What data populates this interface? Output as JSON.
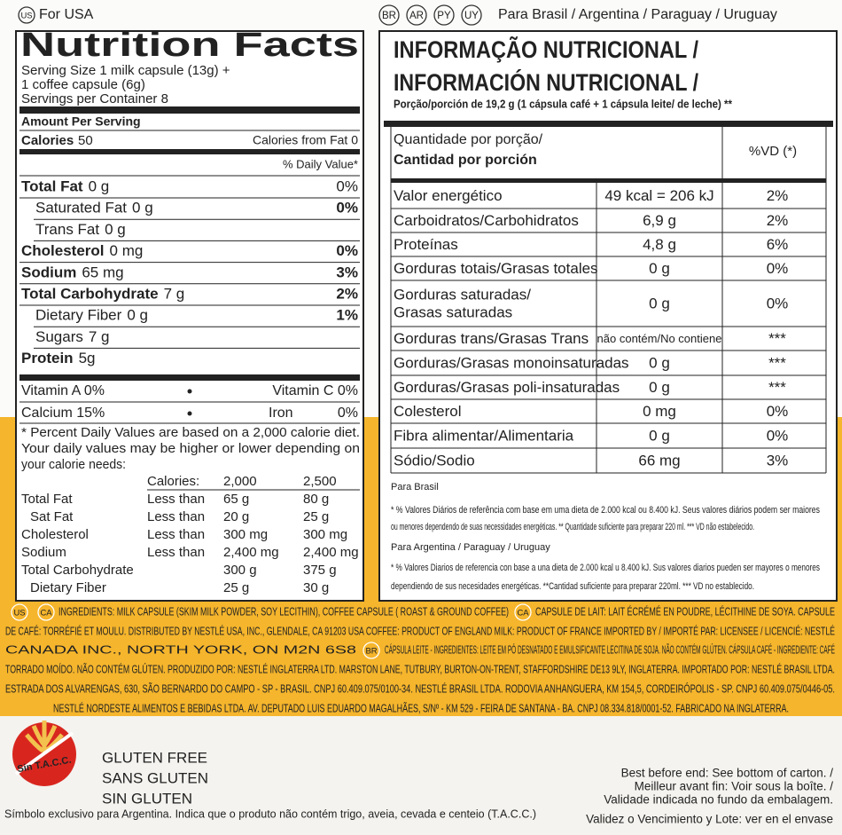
{
  "header": {
    "us_badge": "US",
    "us_label": "For USA",
    "br_badges": [
      "BR",
      "AR",
      "PY",
      "UY"
    ],
    "br_label": "Para Brasil / Argentina / Paraguay / Uruguay"
  },
  "us_panel": {
    "title": "Nutrition Facts",
    "serving_lines": [
      "Serving Size 1 milk capsule (13g) +",
      "1 coffee capsule (6g)",
      "Servings per Container 8"
    ],
    "amount_per_serving": "Amount Per Serving",
    "calories": {
      "label": "Calories",
      "value": "50",
      "from_fat": "Calories from Fat 0"
    },
    "daily_value_header": "% Daily Value*",
    "rows": [
      {
        "name": "Total Fat",
        "amount": "0 g",
        "dv": "0%"
      },
      {
        "name": "Saturated Fat",
        "amount": "0 g",
        "dv": "0%"
      },
      {
        "name": "Trans Fat",
        "amount": "0 g"
      },
      {
        "name": "Cholesterol",
        "amount": "0 mg",
        "dv": "0%"
      },
      {
        "name": "Sodium",
        "amount": "65 mg",
        "dv": "3%"
      },
      {
        "name": "Total Carbohydrate",
        "amount": "7 g",
        "dv": "2%"
      },
      {
        "name": "Dietary Fiber",
        "amount": "0 g",
        "dv": "1%"
      },
      {
        "name": "Sugars",
        "amount": "7 g"
      },
      {
        "name": "Protein",
        "amount": "5g"
      }
    ],
    "vitamins": [
      [
        "Vitamin A 0%",
        "Vitamin C 0%"
      ],
      [
        "Calcium 15%",
        "Iron",
        "0%"
      ]
    ],
    "footnote_lines": [
      "* Percent Daily Values are based on a 2,000 calorie diet.",
      "Your daily values may be higher or lower depending on",
      "your calorie needs:"
    ],
    "reference_header": [
      "Calories:",
      "2,000",
      "2,500"
    ],
    "reference_rows": [
      [
        "Total Fat",
        "Less than",
        "65 g",
        "80 g"
      ],
      [
        "Sat Fat",
        "Less than",
        "20 g",
        "25 g"
      ],
      [
        "Cholesterol",
        "Less than",
        "300 mg",
        "300 mg"
      ],
      [
        "Sodium",
        "Less than",
        "2,400 mg",
        "2,400 mg"
      ],
      [
        "Total Carbohydrate",
        "",
        "300 g",
        "375 g"
      ],
      [
        "Dietary Fiber",
        "",
        "25 g",
        "30 g"
      ]
    ]
  },
  "br_panel": {
    "title_lines": [
      "INFORMAÇÃO NUTRICIONAL /",
      "INFORMACIÓN NUTRICIONAL /"
    ],
    "portion": "Porção/porción de 19,2 g (1 cápsula café + 1 cápsula leite/ de leche) **",
    "table_header": {
      "quantity": [
        "Quantidade por porção/",
        "Cantidad por porción"
      ],
      "dv": "%VD (*)"
    },
    "rows": [
      {
        "name": [
          "Valor energético"
        ],
        "amount": "49 kcal = 206 kJ",
        "dv": "2%"
      },
      {
        "name": [
          "Carboidratos/Carbohidratos"
        ],
        "amount": "6,9 g",
        "dv": "2%"
      },
      {
        "name": [
          "Proteínas"
        ],
        "amount": "4,8 g",
        "dv": "6%"
      },
      {
        "name": [
          "Gorduras totais/Grasas totales"
        ],
        "amount": "0 g",
        "dv": "0%"
      },
      {
        "name": [
          "Gorduras saturadas/",
          "Grasas saturadas"
        ],
        "amount": "0 g",
        "dv": "0%"
      },
      {
        "name": [
          "Gorduras trans/Grasas Trans"
        ],
        "amount": "não contém/No contiene",
        "dv": "***"
      },
      {
        "name": [
          "Gorduras/Grasas monoinsaturadas"
        ],
        "amount": "0 g",
        "dv": "***"
      },
      {
        "name": [
          "Gorduras/Grasas poli-insaturadas"
        ],
        "amount": "0 g",
        "dv": "***"
      },
      {
        "name": [
          "Colesterol"
        ],
        "amount": "0 mg",
        "dv": "0%"
      },
      {
        "name": [
          "Fibra alimentar/Alimentaria"
        ],
        "amount": "0 g",
        "dv": "0%"
      },
      {
        "name": [
          "Sódio/Sodio"
        ],
        "amount": "66 mg",
        "dv": "3%"
      }
    ],
    "footnote_lines": [
      "Para Brasil",
      "* % Valores Diários de referência com base em uma dieta de 2.000 kcal ou 8.400 kJ. Seus valores diários podem ser maiores",
      "ou menores dependendo de suas necessidades energéticas. ** Quantidade suficiente para preparar 220 ml. *** VD não estabelecido.",
      "Para Argentina / Paraguay / Uruguay",
      "* % Valores Diarios de referencia con base a una dieta de 2.000 kcal u 8.400 kJ. Sus valores diarios pueden ser mayores o menores",
      "dependiendo de sus necesidades energéticas. **Cantidad suficiente para preparar 220ml. *** VD no establecido."
    ]
  },
  "ingredients": [
    [
      "US",
      "CA",
      "INGREDIENTS: MILK CAPSULE (SKIM MILK POWDER, SOY LECITHIN), COFFEE CAPSULE ( ROAST & GROUND COFFEE)",
      "CA",
      "CAPSULE DE LAIT: LAIT ÉCRÉMÉ EN POUDRE, LÉCITHINE DE SOYA. CAPSULE"
    ],
    [
      "DE CAFÉ: TORRÉFIÉ ET MOULU. DISTRIBUTED BY NESTLÉ USA, INC., GLENDALE, CA 91203 USA COFFEE: PRODUCT OF ENGLAND MILK: PRODUCT OF FRANCE IMPORTED BY / IMPORTÉ PAR: LICENSEE / LICENCIÉ: NESTLÉ"
    ],
    [
      "CANADA INC., NORTH YORK, ON M2N 6S8",
      "BR",
      "CÁPSULA LEITE - INGREDIENTES: LEITE EM PÓ DESNATADO E EMULSIFICANTE LECITINA DE SOJA. NÃO CONTÉM GLÚTEN. CÁPSULA CAFÉ - INGREDIENTE: CAFÉ"
    ],
    [
      "TORRADO MOÍDO. NÃO CONTÉM GLÚTEN. PRODUZIDO POR: NESTLÉ INGLATERRA LTD. MARSTON LANE, TUTBURY, BURTON-ON-TRENT, STAFFORDSHIRE DE13 9LY, INGLATERRA. IMPORTADO POR: NESTLÉ BRASIL LTDA."
    ],
    [
      "ESTRADA DOS ALVARENGAS, 630, SÃO BERNARDO DO CAMPO - SP - BRASIL. CNPJ 60.409.075/0100-34. NESTLÉ BRASIL LTDA. RODOVIA ANHANGUERA, KM 154,5, CORDEIRÓPOLIS - SP. CNPJ 60.409.075/0446-05."
    ],
    [
      "NESTLÉ NORDESTE ALIMENTOS E BEBIDAS LTDA. AV. DEPUTADO LUIS EDUARDO MAGALHÃES, S/Nº - KM 529 - FEIRA DE SANTANA - BA. CNPJ 08.334.818/0001-52. FABRICADO NA INGLATERRA."
    ]
  ],
  "footer": {
    "logo_text": "Sin T.A.C.C.",
    "gluten_lines": [
      "GLUTEN FREE",
      "SANS GLUTEN",
      "SIN GLUTEN"
    ],
    "symbol_note": "Símbolo exclusivo para Argentina. Indica que o produto não contém trigo, aveia, cevada e centeio (T.A.C.C.)",
    "best_before_lines": [
      "Best before end: See bottom of carton. /",
      "Meilleur avant fin: Voir sous la boîte. /",
      "Validade indicada no fundo da embalagem.",
      "Validez o Vencimiento y Lote: ver en el envase"
    ]
  }
}
